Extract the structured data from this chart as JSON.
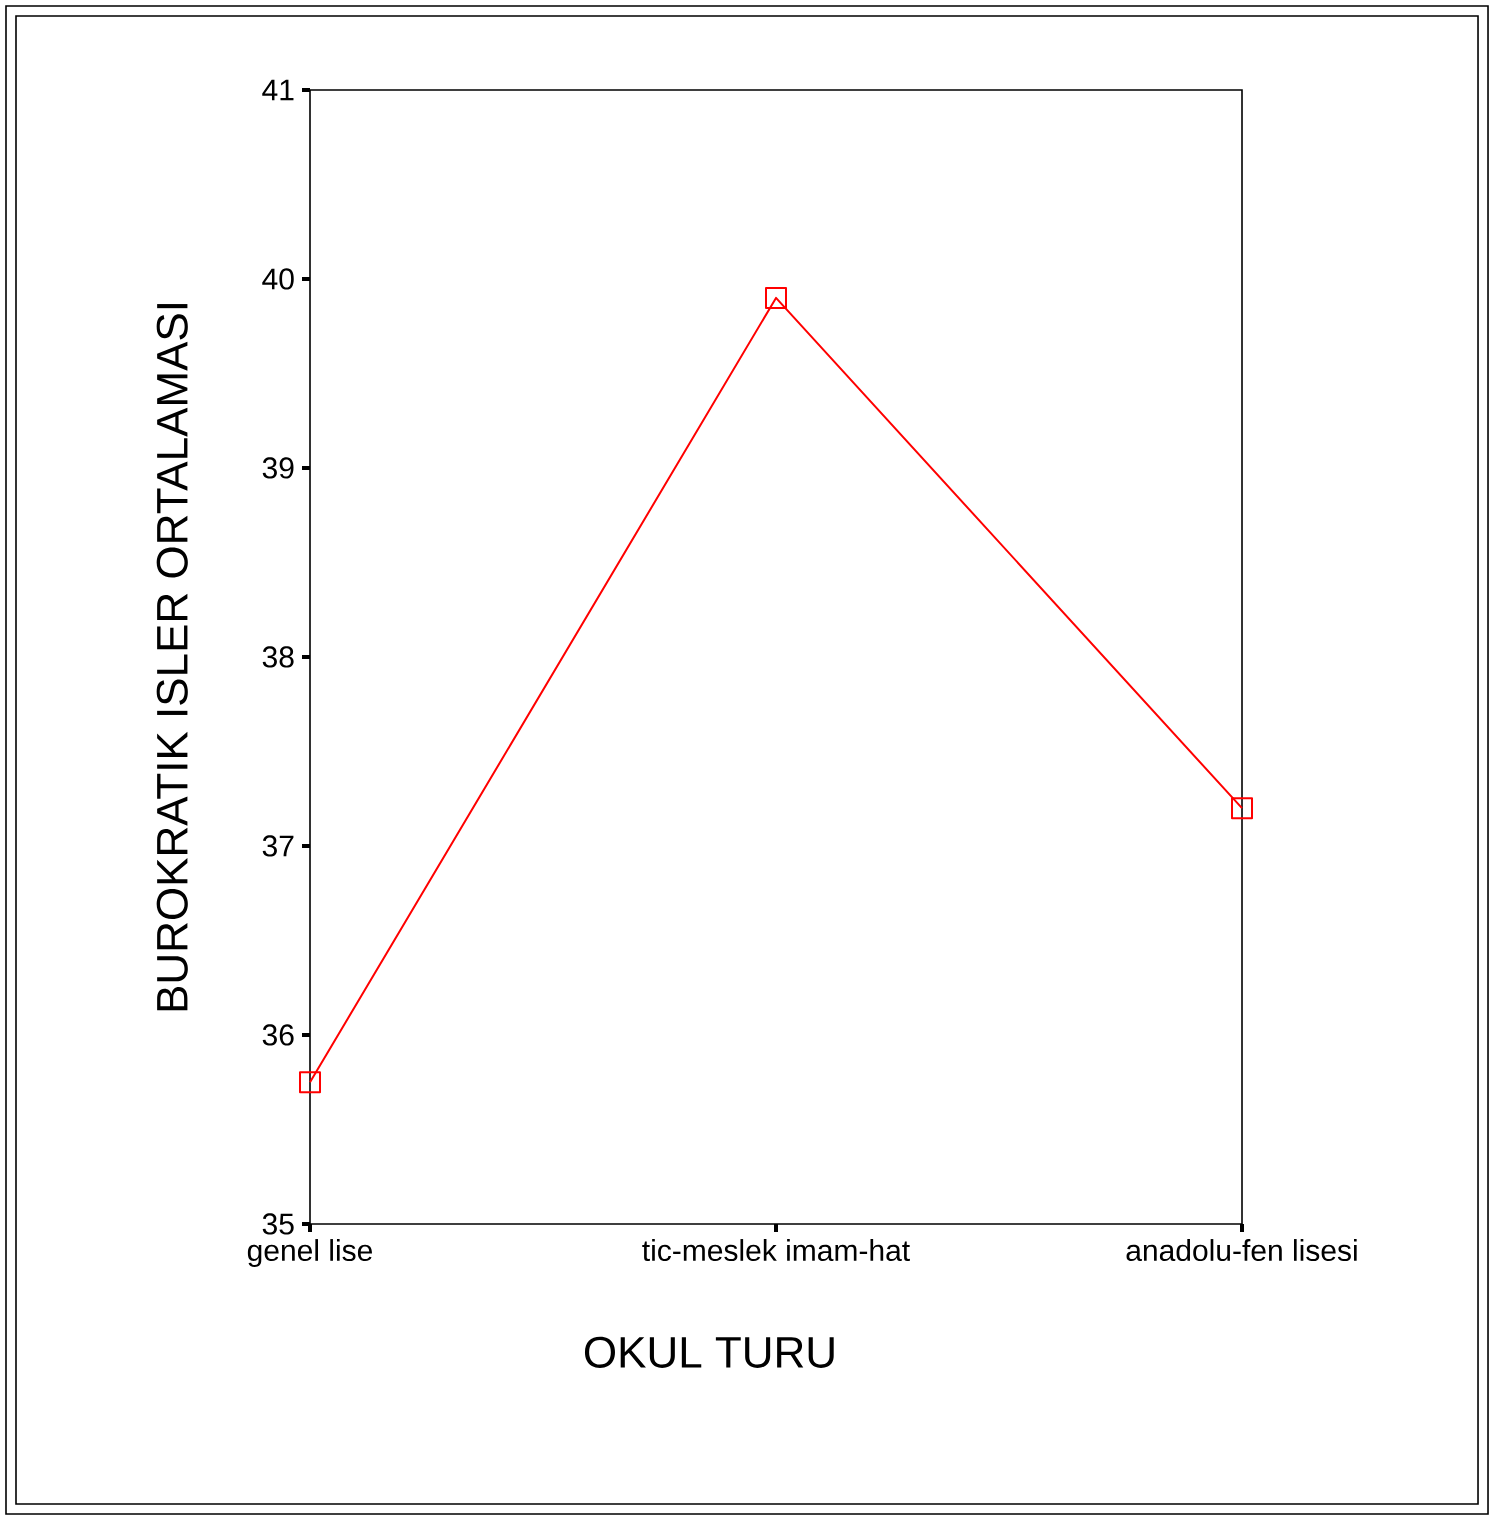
{
  "chart_data": {
    "type": "line",
    "xlabel": "OKUL TURU",
    "ylabel": "BUROKRATIK ISLER ORTALAMASI",
    "categories": [
      "genel lise",
      "tic-meslek imam-hat",
      "anadolu-fen lisesi"
    ],
    "series": [
      {
        "color": "#ff0000",
        "values": [
          35.75,
          39.9,
          37.2
        ]
      }
    ],
    "ylim": [
      35,
      41
    ],
    "yticks": [
      35,
      36,
      37,
      38,
      39,
      40,
      41
    ],
    "marker": "square",
    "line_style": "solid"
  }
}
